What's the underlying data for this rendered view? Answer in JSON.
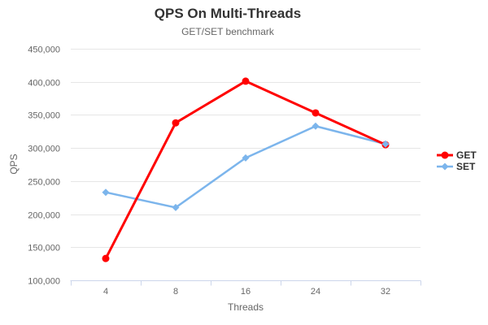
{
  "chart_data": {
    "type": "line",
    "title": "QPS On Multi-Threads",
    "subtitle": "GET/SET benchmark",
    "xlabel": "Threads",
    "ylabel": "QPS",
    "categories": [
      "4",
      "8",
      "16",
      "24",
      "32"
    ],
    "series": [
      {
        "name": "GET",
        "color": "#ff0000",
        "marker": "circle",
        "line_width": 3,
        "values": [
          133000,
          338000,
          401000,
          353000,
          305000
        ]
      },
      {
        "name": "SET",
        "color": "#7cb5ec",
        "marker": "diamond",
        "line_width": 2.5,
        "values": [
          233000,
          210000,
          285000,
          333000,
          306000
        ]
      }
    ],
    "ylim": [
      100000,
      450000
    ],
    "ytick_interval": 50000,
    "ytick_labels": [
      "100,000",
      "150,000",
      "200,000",
      "250,000",
      "300,000",
      "350,000",
      "400,000",
      "450,000"
    ],
    "grid": "horizontal",
    "legend_position": "right",
    "colors": {
      "background": "#ffffff",
      "gridline": "#e6e6e6",
      "axis_line": "#ccd6eb",
      "title_text": "#333333",
      "subtitle_text": "#666666",
      "axis_label_text": "#666666",
      "legend_text": "#333333"
    }
  }
}
